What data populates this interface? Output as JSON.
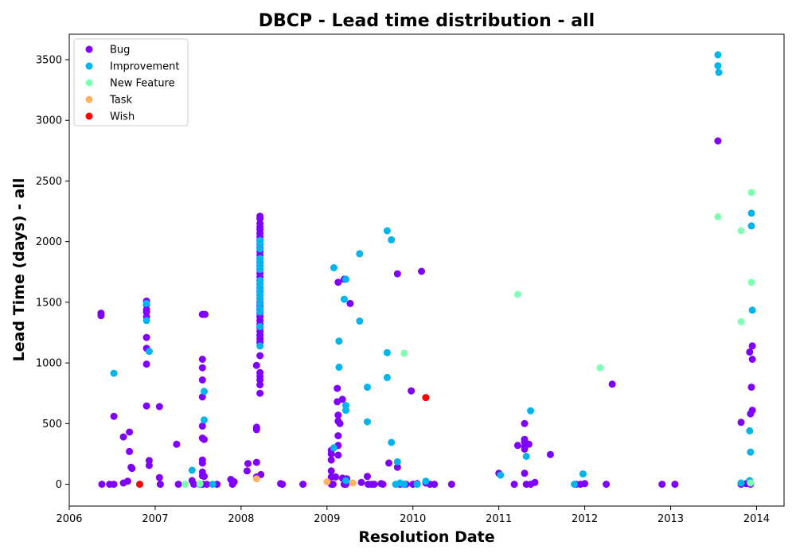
{
  "chart_data": {
    "type": "scatter",
    "title": "DBCP - Lead time distribution - all",
    "xlabel": "Resolution Date",
    "ylabel": "Lead Time (days) - all",
    "xlim": [
      2006.0,
      2014.32
    ],
    "ylim": [
      -180,
      3710
    ],
    "xticks": [
      2006,
      2007,
      2008,
      2009,
      2010,
      2011,
      2012,
      2013,
      2014
    ],
    "yticks": [
      0,
      500,
      1000,
      1500,
      2000,
      2500,
      3000,
      3500
    ],
    "grid": false,
    "legend_position": "top-left",
    "series": [
      {
        "name": "Bug",
        "color": "#8000ff",
        "points": [
          [
            2006.37,
            1410
          ],
          [
            2006.37,
            1390
          ],
          [
            2006.38,
            0
          ],
          [
            2006.47,
            0
          ],
          [
            2006.52,
            0
          ],
          [
            2006.52,
            560
          ],
          [
            2006.63,
            390
          ],
          [
            2006.63,
            10
          ],
          [
            2006.68,
            25
          ],
          [
            2006.7,
            430
          ],
          [
            2006.7,
            270
          ],
          [
            2006.72,
            140
          ],
          [
            2006.73,
            130
          ],
          [
            2006.9,
            1510
          ],
          [
            2006.9,
            1480
          ],
          [
            2006.9,
            1440
          ],
          [
            2006.9,
            1420
          ],
          [
            2006.9,
            1380
          ],
          [
            2006.9,
            1210
          ],
          [
            2006.9,
            1120
          ],
          [
            2006.9,
            990
          ],
          [
            2006.9,
            645
          ],
          [
            2006.93,
            195
          ],
          [
            2006.93,
            155
          ],
          [
            2007.05,
            640
          ],
          [
            2007.05,
            55
          ],
          [
            2007.06,
            0
          ],
          [
            2007.25,
            330
          ],
          [
            2007.27,
            0
          ],
          [
            2007.43,
            30
          ],
          [
            2007.45,
            0
          ],
          [
            2007.53,
            0
          ],
          [
            2007.55,
            0
          ],
          [
            2007.55,
            1400
          ],
          [
            2007.55,
            1030
          ],
          [
            2007.55,
            960
          ],
          [
            2007.55,
            860
          ],
          [
            2007.55,
            720
          ],
          [
            2007.55,
            480
          ],
          [
            2007.55,
            380
          ],
          [
            2007.55,
            200
          ],
          [
            2007.55,
            175
          ],
          [
            2007.55,
            100
          ],
          [
            2007.55,
            70
          ],
          [
            2007.58,
            1400
          ],
          [
            2007.57,
            370
          ],
          [
            2007.57,
            65
          ],
          [
            2007.6,
            0
          ],
          [
            2007.72,
            0
          ],
          [
            2007.88,
            40
          ],
          [
            2007.9,
            0
          ],
          [
            2007.92,
            20
          ],
          [
            2008.07,
            110
          ],
          [
            2008.08,
            170
          ],
          [
            2008.18,
            180
          ],
          [
            2008.18,
            980
          ],
          [
            2008.18,
            470
          ],
          [
            2008.18,
            450
          ],
          [
            2008.18,
            60
          ],
          [
            2008.22,
            2210
          ],
          [
            2008.22,
            2190
          ],
          [
            2008.22,
            2150
          ],
          [
            2008.22,
            2120
          ],
          [
            2008.22,
            2100
          ],
          [
            2008.22,
            2070
          ],
          [
            2008.22,
            2040
          ],
          [
            2008.22,
            2010
          ],
          [
            2008.22,
            1980
          ],
          [
            2008.22,
            1950
          ],
          [
            2008.22,
            1920
          ],
          [
            2008.22,
            1890
          ],
          [
            2008.22,
            1860
          ],
          [
            2008.22,
            1830
          ],
          [
            2008.22,
            1800
          ],
          [
            2008.22,
            1770
          ],
          [
            2008.22,
            1740
          ],
          [
            2008.22,
            1710
          ],
          [
            2008.22,
            1680
          ],
          [
            2008.22,
            1650
          ],
          [
            2008.22,
            1620
          ],
          [
            2008.22,
            1590
          ],
          [
            2008.22,
            1560
          ],
          [
            2008.22,
            1530
          ],
          [
            2008.22,
            1500
          ],
          [
            2008.22,
            1470
          ],
          [
            2008.22,
            1440
          ],
          [
            2008.22,
            1410
          ],
          [
            2008.22,
            1380
          ],
          [
            2008.22,
            1350
          ],
          [
            2008.22,
            1320
          ],
          [
            2008.22,
            1290
          ],
          [
            2008.22,
            1260
          ],
          [
            2008.22,
            1230
          ],
          [
            2008.22,
            1200
          ],
          [
            2008.22,
            1170
          ],
          [
            2008.22,
            1060
          ],
          [
            2008.22,
            920
          ],
          [
            2008.22,
            890
          ],
          [
            2008.22,
            860
          ],
          [
            2008.22,
            820
          ],
          [
            2008.22,
            750
          ],
          [
            2008.23,
            80
          ],
          [
            2008.46,
            5
          ],
          [
            2008.48,
            0
          ],
          [
            2008.72,
            0
          ],
          [
            2009.05,
            280
          ],
          [
            2009.05,
            250
          ],
          [
            2009.05,
            200
          ],
          [
            2009.05,
            110
          ],
          [
            2009.05,
            60
          ],
          [
            2009.05,
            0
          ],
          [
            2009.07,
            0
          ],
          [
            2009.1,
            60
          ],
          [
            2009.12,
            790
          ],
          [
            2009.12,
            680
          ],
          [
            2009.13,
            1665
          ],
          [
            2009.13,
            570
          ],
          [
            2009.13,
            520
          ],
          [
            2009.13,
            400
          ],
          [
            2009.13,
            320
          ],
          [
            2009.13,
            240
          ],
          [
            2009.15,
            500
          ],
          [
            2009.18,
            700
          ],
          [
            2009.18,
            50
          ],
          [
            2009.2,
            1690
          ],
          [
            2009.2,
            0
          ],
          [
            2009.22,
            0
          ],
          [
            2009.23,
            45
          ],
          [
            2009.27,
            1490
          ],
          [
            2009.4,
            15
          ],
          [
            2009.47,
            65
          ],
          [
            2009.48,
            0
          ],
          [
            2009.52,
            0
          ],
          [
            2009.55,
            0
          ],
          [
            2009.63,
            5
          ],
          [
            2009.65,
            0
          ],
          [
            2009.72,
            175
          ],
          [
            2009.82,
            1735
          ],
          [
            2009.82,
            140
          ],
          [
            2009.85,
            0
          ],
          [
            2009.9,
            0
          ],
          [
            2009.92,
            0
          ],
          [
            2009.98,
            770
          ],
          [
            2010.0,
            0
          ],
          [
            2010.05,
            5
          ],
          [
            2010.1,
            1755
          ],
          [
            2010.15,
            10
          ],
          [
            2010.2,
            0
          ],
          [
            2010.25,
            0
          ],
          [
            2010.45,
            0
          ],
          [
            2011.0,
            90
          ],
          [
            2011.18,
            0
          ],
          [
            2011.22,
            320
          ],
          [
            2011.3,
            500
          ],
          [
            2011.3,
            370
          ],
          [
            2011.3,
            350
          ],
          [
            2011.3,
            310
          ],
          [
            2011.3,
            290
          ],
          [
            2011.3,
            90
          ],
          [
            2011.32,
            0
          ],
          [
            2011.35,
            330
          ],
          [
            2011.37,
            0
          ],
          [
            2011.42,
            15
          ],
          [
            2011.6,
            245
          ],
          [
            2011.9,
            0
          ],
          [
            2011.95,
            0
          ],
          [
            2012.0,
            5
          ],
          [
            2012.25,
            0
          ],
          [
            2012.32,
            825
          ],
          [
            2012.9,
            0
          ],
          [
            2013.05,
            0
          ],
          [
            2013.55,
            2830
          ],
          [
            2013.82,
            510
          ],
          [
            2013.82,
            0
          ],
          [
            2013.88,
            5
          ],
          [
            2013.92,
            1090
          ],
          [
            2013.93,
            580
          ],
          [
            2013.93,
            0
          ],
          [
            2013.94,
            800
          ],
          [
            2013.95,
            1140
          ],
          [
            2013.95,
            1030
          ],
          [
            2013.95,
            610
          ]
        ]
      },
      {
        "name": "Improvement",
        "color": "#00b5eb",
        "points": [
          [
            2006.52,
            915
          ],
          [
            2006.9,
            1490
          ],
          [
            2006.9,
            1350
          ],
          [
            2006.93,
            1095
          ],
          [
            2007.43,
            115
          ],
          [
            2007.52,
            0
          ],
          [
            2007.57,
            765
          ],
          [
            2007.57,
            530
          ],
          [
            2007.67,
            0
          ],
          [
            2008.22,
            2010
          ],
          [
            2008.22,
            1980
          ],
          [
            2008.22,
            1940
          ],
          [
            2008.22,
            1860
          ],
          [
            2008.22,
            1830
          ],
          [
            2008.22,
            1800
          ],
          [
            2008.22,
            1770
          ],
          [
            2008.22,
            1680
          ],
          [
            2008.22,
            1650
          ],
          [
            2008.22,
            1620
          ],
          [
            2008.22,
            1590
          ],
          [
            2008.22,
            1560
          ],
          [
            2008.22,
            1530
          ],
          [
            2008.22,
            1490
          ],
          [
            2008.22,
            1450
          ],
          [
            2008.22,
            1420
          ],
          [
            2008.22,
            1300
          ],
          [
            2008.22,
            1140
          ],
          [
            2009.08,
            1785
          ],
          [
            2009.08,
            300
          ],
          [
            2009.14,
            1180
          ],
          [
            2009.14,
            965
          ],
          [
            2009.2,
            1525
          ],
          [
            2009.22,
            1690
          ],
          [
            2009.22,
            650
          ],
          [
            2009.22,
            610
          ],
          [
            2009.22,
            30
          ],
          [
            2009.38,
            1900
          ],
          [
            2009.38,
            1345
          ],
          [
            2009.47,
            800
          ],
          [
            2009.47,
            515
          ],
          [
            2009.7,
            2090
          ],
          [
            2009.7,
            1085
          ],
          [
            2009.7,
            880
          ],
          [
            2009.75,
            2015
          ],
          [
            2009.75,
            345
          ],
          [
            2009.8,
            0
          ],
          [
            2009.82,
            185
          ],
          [
            2009.85,
            10
          ],
          [
            2009.9,
            0
          ],
          [
            2010.05,
            0
          ],
          [
            2010.15,
            25
          ],
          [
            2011.02,
            75
          ],
          [
            2011.32,
            230
          ],
          [
            2011.37,
            605
          ],
          [
            2011.88,
            0
          ],
          [
            2011.98,
            85
          ],
          [
            2013.55,
            3540
          ],
          [
            2013.55,
            3450
          ],
          [
            2013.56,
            3395
          ],
          [
            2013.82,
            10
          ],
          [
            2013.92,
            30
          ],
          [
            2013.92,
            440
          ],
          [
            2013.93,
            265
          ],
          [
            2013.94,
            2235
          ],
          [
            2013.94,
            2130
          ],
          [
            2013.95,
            1435
          ]
        ]
      },
      {
        "name": "New Feature",
        "color": "#80ffb4",
        "points": [
          [
            2007.35,
            0
          ],
          [
            2007.52,
            5
          ],
          [
            2009.9,
            1080
          ],
          [
            2011.22,
            1565
          ],
          [
            2012.18,
            960
          ],
          [
            2013.55,
            2205
          ],
          [
            2013.82,
            2090
          ],
          [
            2013.82,
            1340
          ],
          [
            2013.93,
            10
          ],
          [
            2013.94,
            2405
          ],
          [
            2013.94,
            1665
          ]
        ]
      },
      {
        "name": "Task",
        "color": "#ffb360",
        "points": [
          [
            2008.18,
            45
          ],
          [
            2009.0,
            20
          ],
          [
            2009.3,
            10
          ]
        ]
      },
      {
        "name": "Wish",
        "color": "#ff0000",
        "points": [
          [
            2006.82,
            0
          ],
          [
            2010.15,
            715
          ]
        ]
      }
    ]
  }
}
